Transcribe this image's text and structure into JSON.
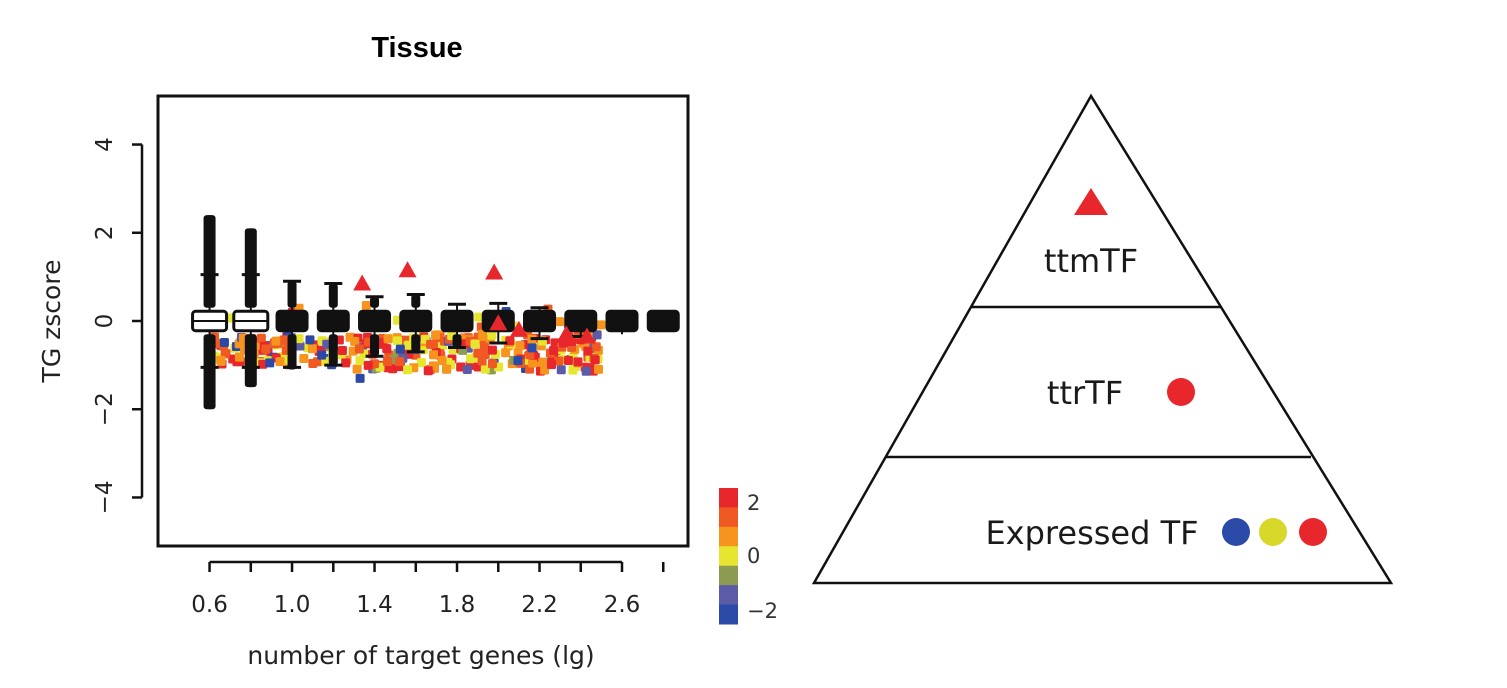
{
  "chart_data": {
    "type": "scatter",
    "title": "Tissue",
    "xlabel": "number of target genes (lg)",
    "ylabel": "TG zscore",
    "xlim": [
      0.35,
      2.92
    ],
    "ylim": [
      -5.1,
      5.1
    ],
    "xticks": [
      "0.6",
      "1.0",
      "1.4",
      "1.8",
      "2.2",
      "2.6"
    ],
    "yticks": [
      "-4",
      "-2",
      "0",
      "2",
      "4"
    ],
    "boxplots": [
      {
        "x": 0.6,
        "whisker": [
          -2.0,
          2.4
        ]
      },
      {
        "x": 0.8,
        "whisker": [
          -1.5,
          2.1
        ]
      },
      {
        "x": 1.0,
        "whisker": [
          -1.1,
          0.9
        ]
      },
      {
        "x": 1.2,
        "whisker": [
          -1.0,
          0.85
        ]
      },
      {
        "x": 1.4,
        "whisker": [
          -0.8,
          0.55
        ]
      },
      {
        "x": 1.6,
        "whisker": [
          -0.7,
          0.6
        ]
      },
      {
        "x": 1.8,
        "whisker": [
          -0.6,
          0.38
        ]
      },
      {
        "x": 2.0,
        "whisker": [
          -0.5,
          0.4
        ]
      },
      {
        "x": 2.2,
        "whisker": [
          -0.4,
          0.3
        ]
      },
      {
        "x": 2.4,
        "whisker": [
          -0.35,
          0.2
        ]
      },
      {
        "x": 2.6,
        "whisker": [
          -0.3,
          0.18
        ]
      },
      {
        "x": 2.8,
        "whisker": [
          -0.25,
          0.15
        ]
      }
    ],
    "ttmTF": [
      {
        "x": 1.34,
        "y": 0.85
      },
      {
        "x": 1.56,
        "y": 1.15
      },
      {
        "x": 1.98,
        "y": 1.1
      },
      {
        "x": 2.0,
        "y": -0.05
      },
      {
        "x": 2.1,
        "y": -0.2
      },
      {
        "x": 2.33,
        "y": -0.3
      },
      {
        "x": 2.43,
        "y": -0.35
      }
    ],
    "colorbar": {
      "ticks": [
        "2",
        "0",
        "-2"
      ],
      "colors": [
        "#e8272c",
        "#f05a22",
        "#f7941d",
        "#e6e631",
        "#8c9a52",
        "#5b5ba8",
        "#2b4aa8"
      ]
    }
  },
  "pyramid": {
    "levels": [
      {
        "label": "ttmTF",
        "markers": [
          "triangle-red"
        ]
      },
      {
        "label": "ttrTF",
        "markers": [
          "circle-red"
        ]
      },
      {
        "label": "Expressed TF",
        "markers": [
          "circle-blue",
          "circle-yellow",
          "circle-red"
        ]
      }
    ],
    "colors": {
      "red": "#e8272c",
      "yellow": "#d8d82a",
      "blue": "#2b4aa8"
    }
  }
}
